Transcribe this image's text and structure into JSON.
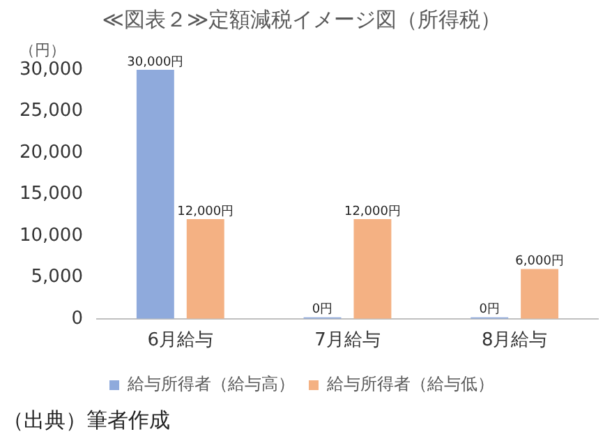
{
  "chart_data": {
    "type": "bar",
    "title": "≪図表２≫定額減税イメージ図（所得税）",
    "ylabel": "（円）",
    "categories": [
      "6月給与",
      "7月給与",
      "8月給与"
    ],
    "series": [
      {
        "name": "給与所得者（給与高）",
        "color": "#8faadc",
        "values": [
          30000,
          0,
          0
        ],
        "value_labels": [
          "30,000円",
          "0円",
          "0円"
        ]
      },
      {
        "name": "給与所得者（給与低）",
        "color": "#f4b183",
        "values": [
          12000,
          12000,
          6000
        ],
        "value_labels": [
          "12,000円",
          "12,000円",
          "6,000円"
        ]
      }
    ],
    "ylim": [
      0,
      30000
    ],
    "yticks": [
      {
        "value": 0,
        "label": "0"
      },
      {
        "value": 5000,
        "label": "5,000"
      },
      {
        "value": 10000,
        "label": "10,000"
      },
      {
        "value": 15000,
        "label": "15,000"
      },
      {
        "value": 20000,
        "label": "20,000"
      },
      {
        "value": 25000,
        "label": "25,000"
      },
      {
        "value": 30000,
        "label": "30,000"
      }
    ],
    "grid": false,
    "legend": "bottom",
    "annotations": [
      "（出典）筆者作成"
    ]
  }
}
